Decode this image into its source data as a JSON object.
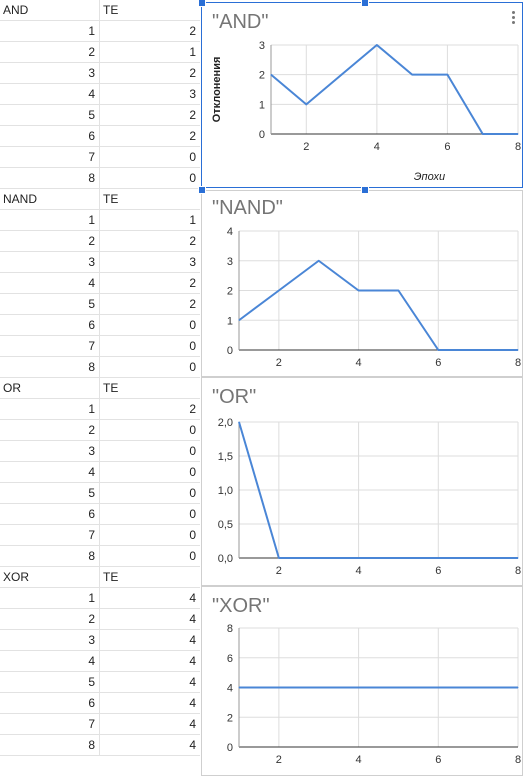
{
  "tables": [
    {
      "name": "AND",
      "col": "TE",
      "rows": [
        [
          1,
          2
        ],
        [
          2,
          1
        ],
        [
          3,
          2
        ],
        [
          4,
          3
        ],
        [
          5,
          2
        ],
        [
          6,
          2
        ],
        [
          7,
          0
        ],
        [
          8,
          0
        ]
      ]
    },
    {
      "name": "NAND",
      "col": "TE",
      "rows": [
        [
          1,
          1
        ],
        [
          2,
          2
        ],
        [
          3,
          3
        ],
        [
          4,
          2
        ],
        [
          5,
          2
        ],
        [
          6,
          0
        ],
        [
          7,
          0
        ],
        [
          8,
          0
        ]
      ]
    },
    {
      "name": "OR",
      "col": "TE",
      "rows": [
        [
          1,
          2
        ],
        [
          2,
          0
        ],
        [
          3,
          0
        ],
        [
          4,
          0
        ],
        [
          5,
          0
        ],
        [
          6,
          0
        ],
        [
          7,
          0
        ],
        [
          8,
          0
        ]
      ]
    },
    {
      "name": "XOR",
      "col": "TE",
      "rows": [
        [
          1,
          4
        ],
        [
          2,
          4
        ],
        [
          3,
          4
        ],
        [
          4,
          4
        ],
        [
          5,
          4
        ],
        [
          6,
          4
        ],
        [
          7,
          4
        ],
        [
          8,
          4
        ]
      ]
    }
  ],
  "chart_data": [
    {
      "type": "line",
      "title": "\"AND\"",
      "xlabel": "Эпохи",
      "ylabel": "Отклонения",
      "x": [
        1,
        2,
        3,
        4,
        5,
        6,
        7,
        8
      ],
      "y": [
        2,
        1,
        2,
        3,
        2,
        2,
        0,
        0
      ],
      "xlim": [
        1,
        8
      ],
      "ylim": [
        0,
        3
      ],
      "xticks": [
        2,
        4,
        6,
        8
      ],
      "yticks": [
        0,
        1,
        2,
        3
      ],
      "ytick_labels": [
        "0",
        "1",
        "2",
        "3"
      ],
      "grid": true
    },
    {
      "type": "line",
      "title": "\"NAND\"",
      "xlabel": "",
      "ylabel": "",
      "x": [
        1,
        2,
        3,
        4,
        5,
        6,
        7,
        8
      ],
      "y": [
        1,
        2,
        3,
        2,
        2,
        0,
        0,
        0
      ],
      "xlim": [
        1,
        8
      ],
      "ylim": [
        0,
        4
      ],
      "xticks": [
        2,
        4,
        6,
        8
      ],
      "yticks": [
        0,
        1,
        2,
        3,
        4
      ],
      "ytick_labels": [
        "0",
        "1",
        "2",
        "3",
        "4"
      ],
      "grid": true
    },
    {
      "type": "line",
      "title": "\"OR\"",
      "xlabel": "",
      "ylabel": "",
      "x": [
        1,
        2,
        3,
        4,
        5,
        6,
        7,
        8
      ],
      "y": [
        2,
        0,
        0,
        0,
        0,
        0,
        0,
        0
      ],
      "xlim": [
        1,
        8
      ],
      "ylim": [
        0,
        2
      ],
      "xticks": [
        2,
        4,
        6,
        8
      ],
      "yticks": [
        0,
        0.5,
        1,
        1.5,
        2
      ],
      "ytick_labels": [
        "0,0",
        "0,5",
        "1,0",
        "1,5",
        "2,0"
      ],
      "grid": true
    },
    {
      "type": "line",
      "title": "\"XOR\"",
      "xlabel": "",
      "ylabel": "",
      "x": [
        1,
        2,
        3,
        4,
        5,
        6,
        7,
        8
      ],
      "y": [
        4,
        4,
        4,
        4,
        4,
        4,
        4,
        4
      ],
      "xlim": [
        1,
        8
      ],
      "ylim": [
        0,
        8
      ],
      "xticks": [
        2,
        4,
        6,
        8
      ],
      "yticks": [
        0,
        2,
        4,
        6,
        8
      ],
      "ytick_labels": [
        "0",
        "2",
        "4",
        "6",
        "8"
      ],
      "grid": true
    }
  ],
  "colors": {
    "line": "#4a86d6",
    "grid": "#dddddd",
    "axis": "#333333",
    "selection": "#2a6fd6"
  }
}
